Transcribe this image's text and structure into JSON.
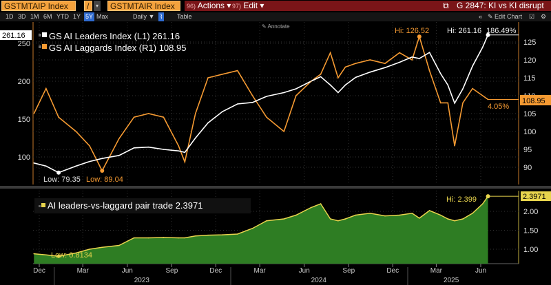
{
  "header": {
    "security1": "GSTMTAIP Index",
    "divider": "/",
    "security2": "GSTMTAIR Index",
    "actions_num": "96)",
    "actions": "Actions ▾",
    "edit_num": "97)",
    "edit": "Edit ▾",
    "chart_title": "G 2847: KI vs KI disrupt"
  },
  "toolbar": {
    "ranges": [
      "1D",
      "3D",
      "1M",
      "6M",
      "YTD",
      "1Y",
      "5Y",
      "Max"
    ],
    "selected_range": "5Y",
    "frequency": "Daily ▼",
    "table": "Table",
    "edit_chart": "Edit Chart",
    "annotate": "Annotate"
  },
  "colors": {
    "leaders": "#ffffff",
    "laggards": "#f59a32",
    "pair": "#e8d44d",
    "pair_fill": "#2e7d23",
    "header_red": "#7a1518",
    "selected_range": "#2f6bd0"
  },
  "chart_data": [
    {
      "type": "line",
      "panel": "top",
      "legend": [
        "GS AI Leaders Index (L1)  261.16",
        "GS AI Laggards Index (R1) 108.95"
      ],
      "x": [
        "2022-11-20",
        "2022-12-15",
        "2023-01-10",
        "2023-02-15",
        "2023-03-15",
        "2023-04-10",
        "2023-05-15",
        "2023-06-15",
        "2023-07-15",
        "2023-08-15",
        "2023-09-15",
        "2023-09-28",
        "2023-10-20",
        "2023-11-15",
        "2023-12-15",
        "2024-01-15",
        "2024-02-15",
        "2024-03-15",
        "2024-04-20",
        "2024-05-15",
        "2024-06-15",
        "2024-07-05",
        "2024-07-25",
        "2024-08-10",
        "2024-08-25",
        "2024-09-15",
        "2024-10-15",
        "2024-11-15",
        "2024-12-15",
        "2025-01-10",
        "2025-01-25",
        "2025-02-15",
        "2025-03-10",
        "2025-03-25",
        "2025-04-08",
        "2025-04-25",
        "2025-05-15",
        "2025-06-05",
        "2025-06-16"
      ],
      "series": [
        {
          "name": "GS AI Leaders Index (L1)",
          "axis": "left",
          "values": [
            92,
            88,
            79.35,
            88,
            94,
            98,
            102,
            112,
            113,
            110,
            108,
            106,
            125,
            145,
            160,
            170,
            172,
            180,
            185,
            190,
            200,
            206,
            195,
            185,
            195,
            205,
            212,
            218,
            225,
            232,
            230,
            238,
            210,
            195,
            171,
            190,
            220,
            245,
            261.16
          ]
        },
        {
          "name": "GS AI Laggards Index (R1)",
          "axis": "right",
          "values": [
            105,
            112,
            104,
            100,
            96,
            89.04,
            98,
            104,
            105,
            104,
            96,
            91.5,
            105,
            115,
            116,
            117,
            110,
            104,
            100,
            110,
            114,
            116,
            122,
            115,
            118,
            119,
            120,
            119,
            122,
            120,
            126.52,
            117,
            108,
            108,
            96,
            108,
            112,
            110,
            108.95
          ]
        }
      ],
      "left_axis": {
        "ticks": [
          "100",
          "150",
          "200",
          "250"
        ],
        "range": [
          70,
          280
        ],
        "last": "261.16"
      },
      "right_axis": {
        "ticks": [
          "90",
          "95",
          "100",
          "105",
          "110",
          "115",
          "120",
          "125"
        ],
        "range": [
          85,
          130
        ],
        "last": "108.95"
      },
      "annotations": {
        "leaders_hi": "Hi: 261.16",
        "leaders_change": "186.49%",
        "laggards_hi": "Hi: 126.52",
        "laggards_change": "4.05%",
        "leaders_low": "Low: 79.35",
        "laggards_low": "Low: 89.04"
      }
    },
    {
      "type": "area",
      "panel": "bottom",
      "legend": "AI leaders-vs-laggard pair trade 2.3971",
      "values": [
        0.88,
        0.85,
        0.8134,
        0.9,
        1.0,
        1.05,
        1.1,
        1.3,
        1.3,
        1.31,
        1.3,
        1.3,
        1.35,
        1.37,
        1.38,
        1.4,
        1.55,
        1.75,
        1.8,
        1.9,
        2.1,
        2.2,
        1.8,
        1.75,
        1.8,
        1.9,
        1.95,
        1.88,
        1.9,
        1.95,
        1.82,
        2.02,
        1.9,
        1.8,
        1.75,
        1.8,
        1.95,
        2.2,
        2.3971
      ],
      "axis": {
        "ticks": [
          "1.00",
          "1.50",
          "2.00"
        ],
        "range": [
          0.6,
          2.5
        ],
        "last": "2.3971"
      },
      "annotations": {
        "hi": "Hi: 2.399",
        "low": "Low: 0.8134"
      }
    }
  ],
  "x_axis": {
    "months": [
      [
        "2022-12-01",
        "Dec"
      ],
      [
        "2023-03-01",
        "Mar"
      ],
      [
        "2023-06-01",
        "Jun"
      ],
      [
        "2023-09-01",
        "Sep"
      ],
      [
        "2023-12-01",
        "Dec"
      ],
      [
        "2024-03-01",
        "Mar"
      ],
      [
        "2024-06-01",
        "Jun"
      ],
      [
        "2024-09-01",
        "Sep"
      ],
      [
        "2024-12-01",
        "Dec"
      ],
      [
        "2025-03-01",
        "Mar"
      ],
      [
        "2025-06-01",
        "Jun"
      ]
    ],
    "years": [
      "2023",
      "2024",
      "2025"
    ]
  }
}
